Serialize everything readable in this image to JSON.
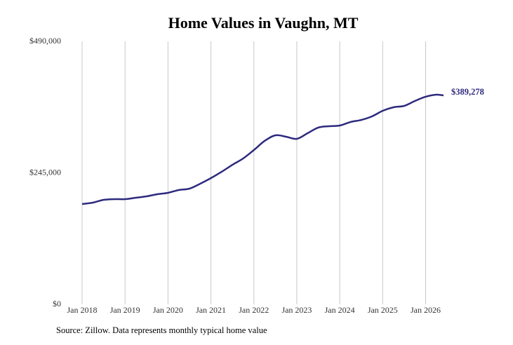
{
  "chart_data": {
    "type": "line",
    "title": "Home Values in Vaughn, MT",
    "source": "Source: Zillow. Data represents monthly typical home value",
    "color": "#2e2a7e",
    "grid": true,
    "x": [
      "2018-01",
      "2018-04",
      "2018-07",
      "2018-10",
      "2019-01",
      "2019-04",
      "2019-07",
      "2019-10",
      "2020-01",
      "2020-04",
      "2020-07",
      "2020-10",
      "2021-01",
      "2021-04",
      "2021-07",
      "2021-10",
      "2022-01",
      "2022-04",
      "2022-07",
      "2022-10",
      "2023-01",
      "2023-04",
      "2023-07",
      "2023-10",
      "2024-01",
      "2024-04",
      "2024-07",
      "2024-10",
      "2025-01",
      "2025-04",
      "2025-07",
      "2025-10",
      "2026-01",
      "2026-04",
      "2026-06"
    ],
    "values": [
      186900,
      189500,
      194700,
      196000,
      196000,
      198600,
      201200,
      205200,
      207800,
      213000,
      215600,
      224800,
      235200,
      247000,
      260000,
      271800,
      287500,
      304500,
      314900,
      312300,
      308400,
      318800,
      329300,
      331900,
      333200,
      339700,
      343600,
      350200,
      360600,
      367200,
      369800,
      378900,
      386800,
      390700,
      389278
    ],
    "end_label": "$389,278",
    "xlim": [
      "2018-01",
      "2026-06"
    ],
    "xticks": [
      {
        "value": "2018-01",
        "label": "Jan 2018"
      },
      {
        "value": "2019-01",
        "label": "Jan 2019"
      },
      {
        "value": "2020-01",
        "label": "Jan 2020"
      },
      {
        "value": "2021-01",
        "label": "Jan 2021"
      },
      {
        "value": "2022-01",
        "label": "Jan 2022"
      },
      {
        "value": "2023-01",
        "label": "Jan 2023"
      },
      {
        "value": "2024-01",
        "label": "Jan 2024"
      },
      {
        "value": "2025-01",
        "label": "Jan 2025"
      },
      {
        "value": "2026-01",
        "label": "Jan 2026"
      }
    ],
    "ylim": [
      0,
      490000
    ],
    "yticks": [
      {
        "value": 0,
        "label": "$0"
      },
      {
        "value": 245000,
        "label": "$245,000"
      },
      {
        "value": 490000,
        "label": "$490,000"
      }
    ]
  }
}
